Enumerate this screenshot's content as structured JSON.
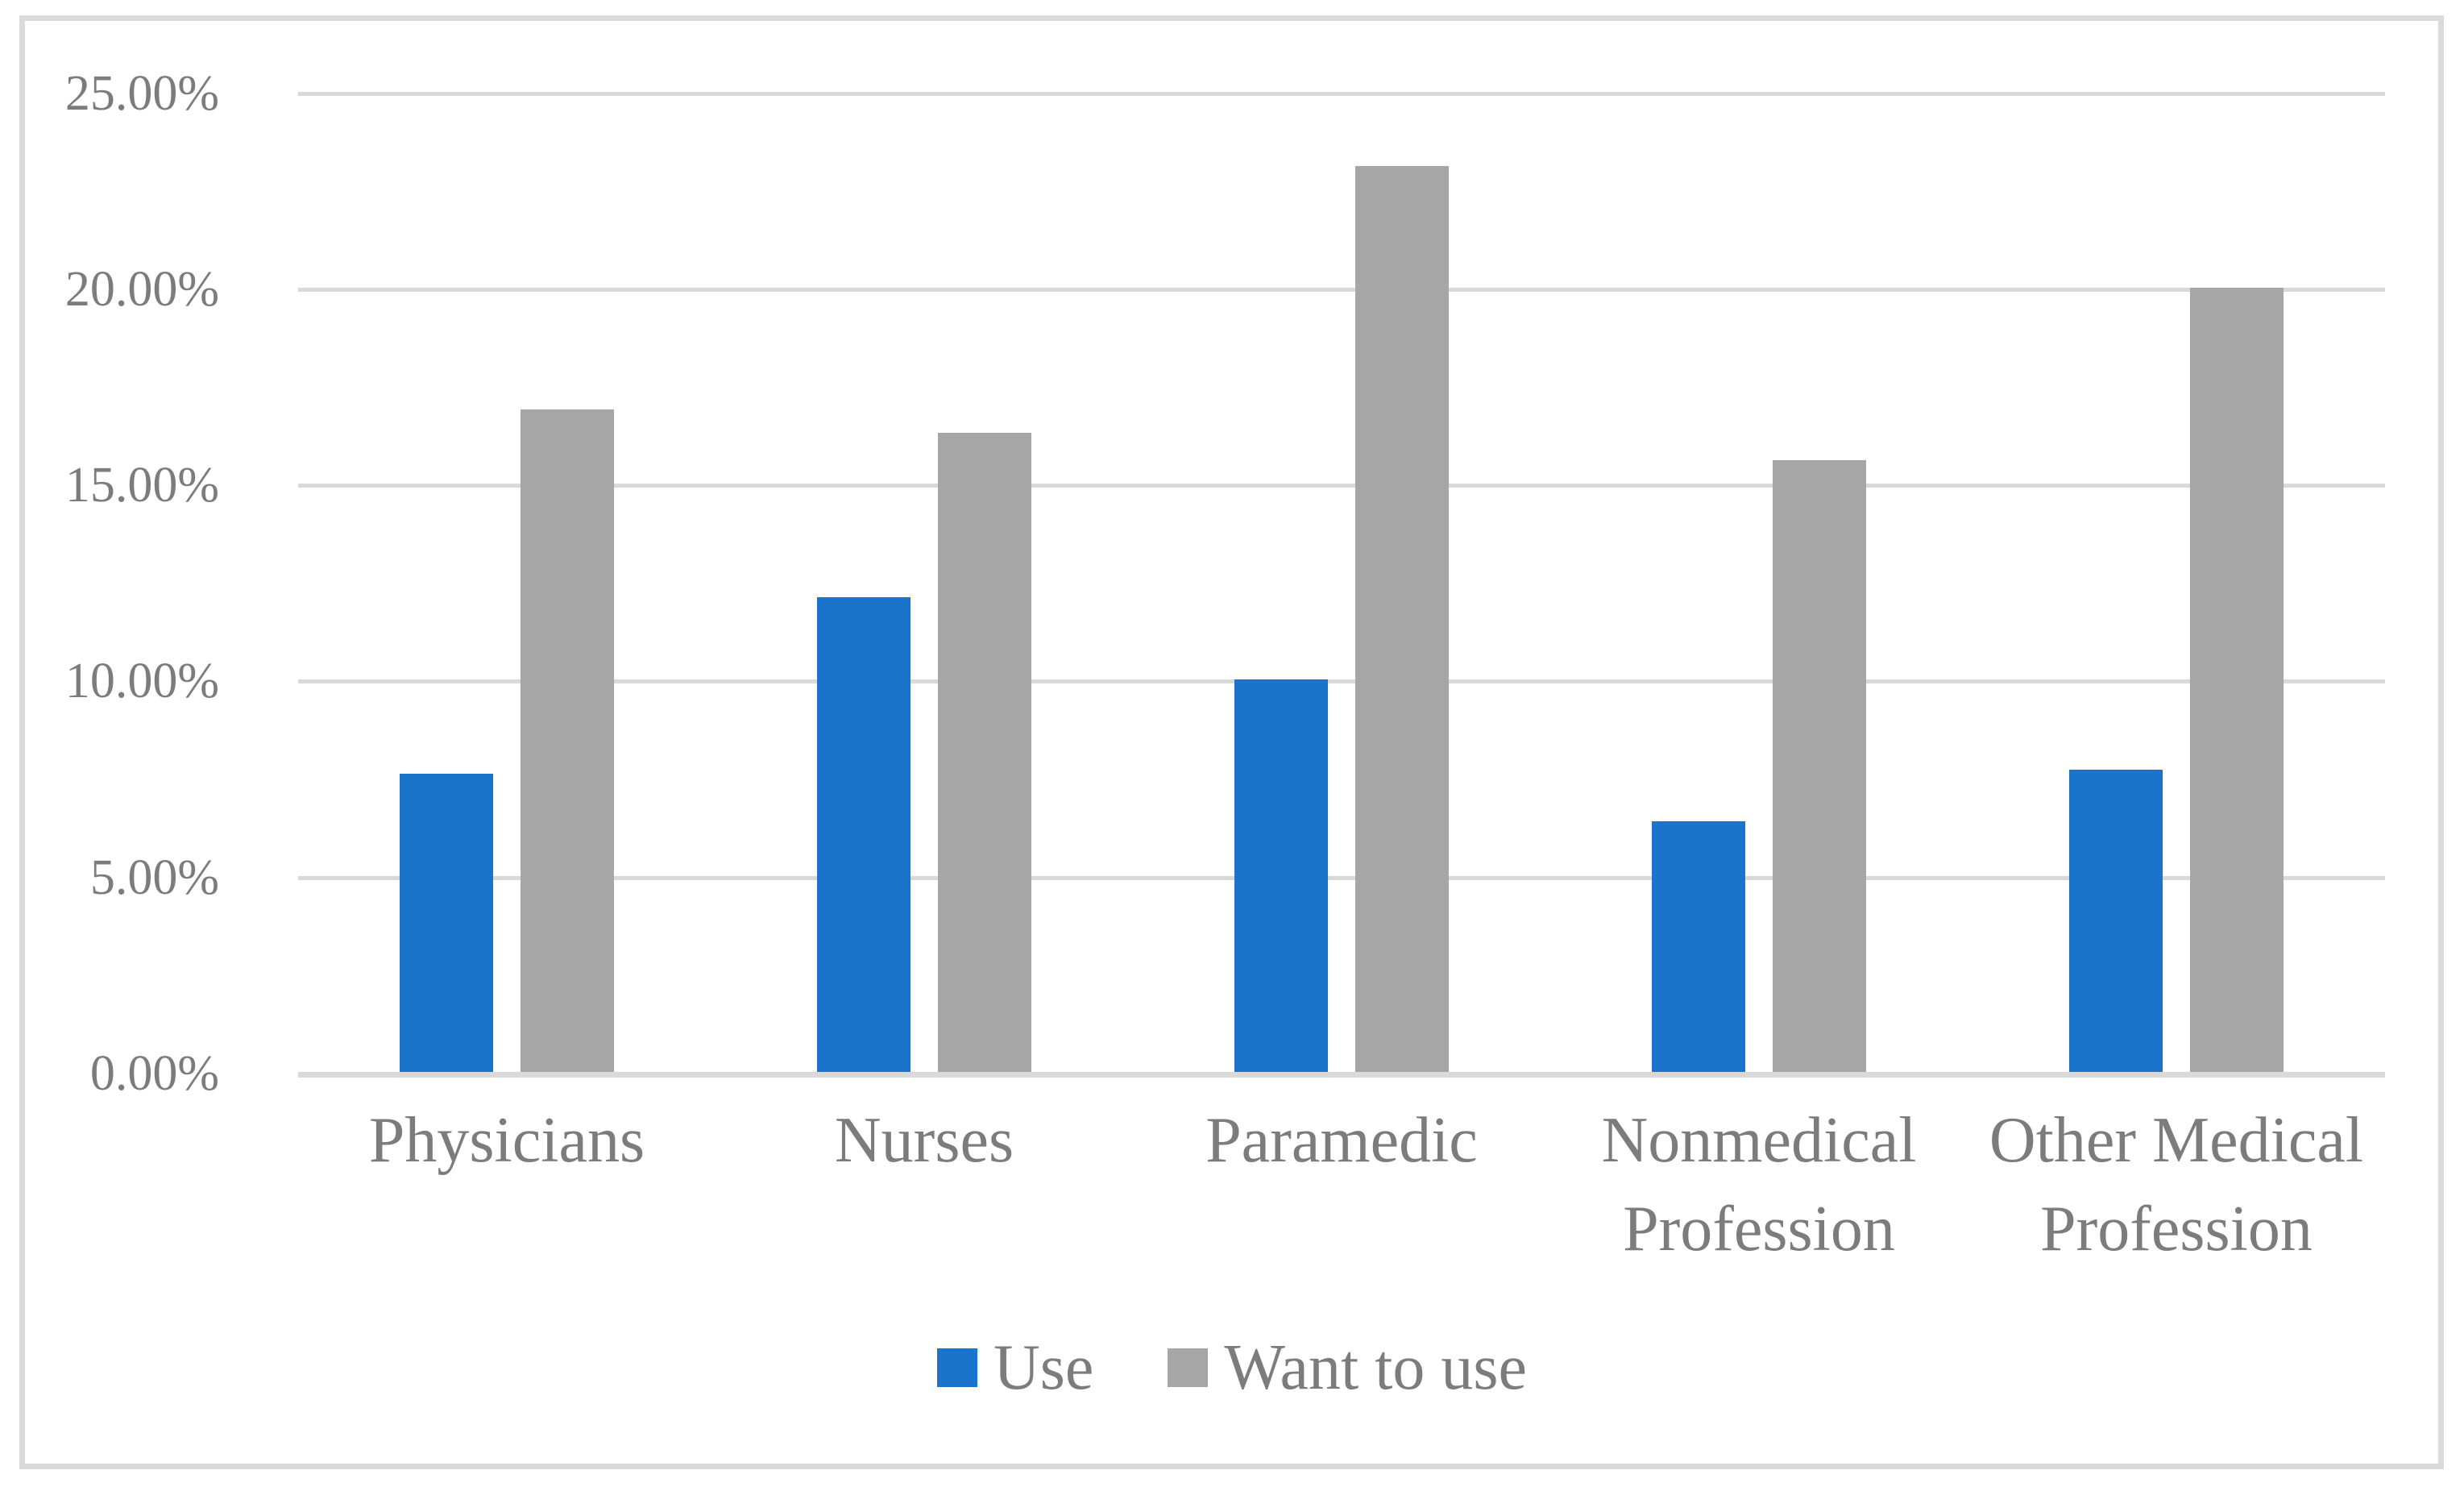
{
  "figure": {
    "background_color": "#FFFFFF",
    "border_color": "#DADADA"
  },
  "chart_data": {
    "type": "bar",
    "title": "",
    "xlabel": "",
    "ylabel": "",
    "categories": [
      "Physicians",
      "Nurses",
      "Paramedic",
      "Nonmedical Profession",
      "Other Medical Profession"
    ],
    "series": [
      {
        "name": "Use",
        "color": "#1B74CB",
        "values": [
          7.6,
          12.1,
          10.0,
          6.4,
          7.7
        ]
      },
      {
        "name": "Want to use",
        "color": "#A6A6A6",
        "values": [
          16.9,
          16.3,
          23.1,
          15.6,
          20.0
        ]
      }
    ],
    "ylim": [
      0,
      25
    ],
    "y_ticks": [
      {
        "value": 25,
        "label": "25.00%"
      },
      {
        "value": 20,
        "label": "20.00%"
      },
      {
        "value": 15,
        "label": "15.00%"
      },
      {
        "value": 10,
        "label": "10.00%"
      },
      {
        "value": 5,
        "label": "5.00%"
      },
      {
        "value": 0,
        "label": "0.00%"
      }
    ],
    "grid": true,
    "gridline_color": "#D9D9D9",
    "axis_text_color": "#7C7C7C",
    "legend_position": "bottom"
  }
}
